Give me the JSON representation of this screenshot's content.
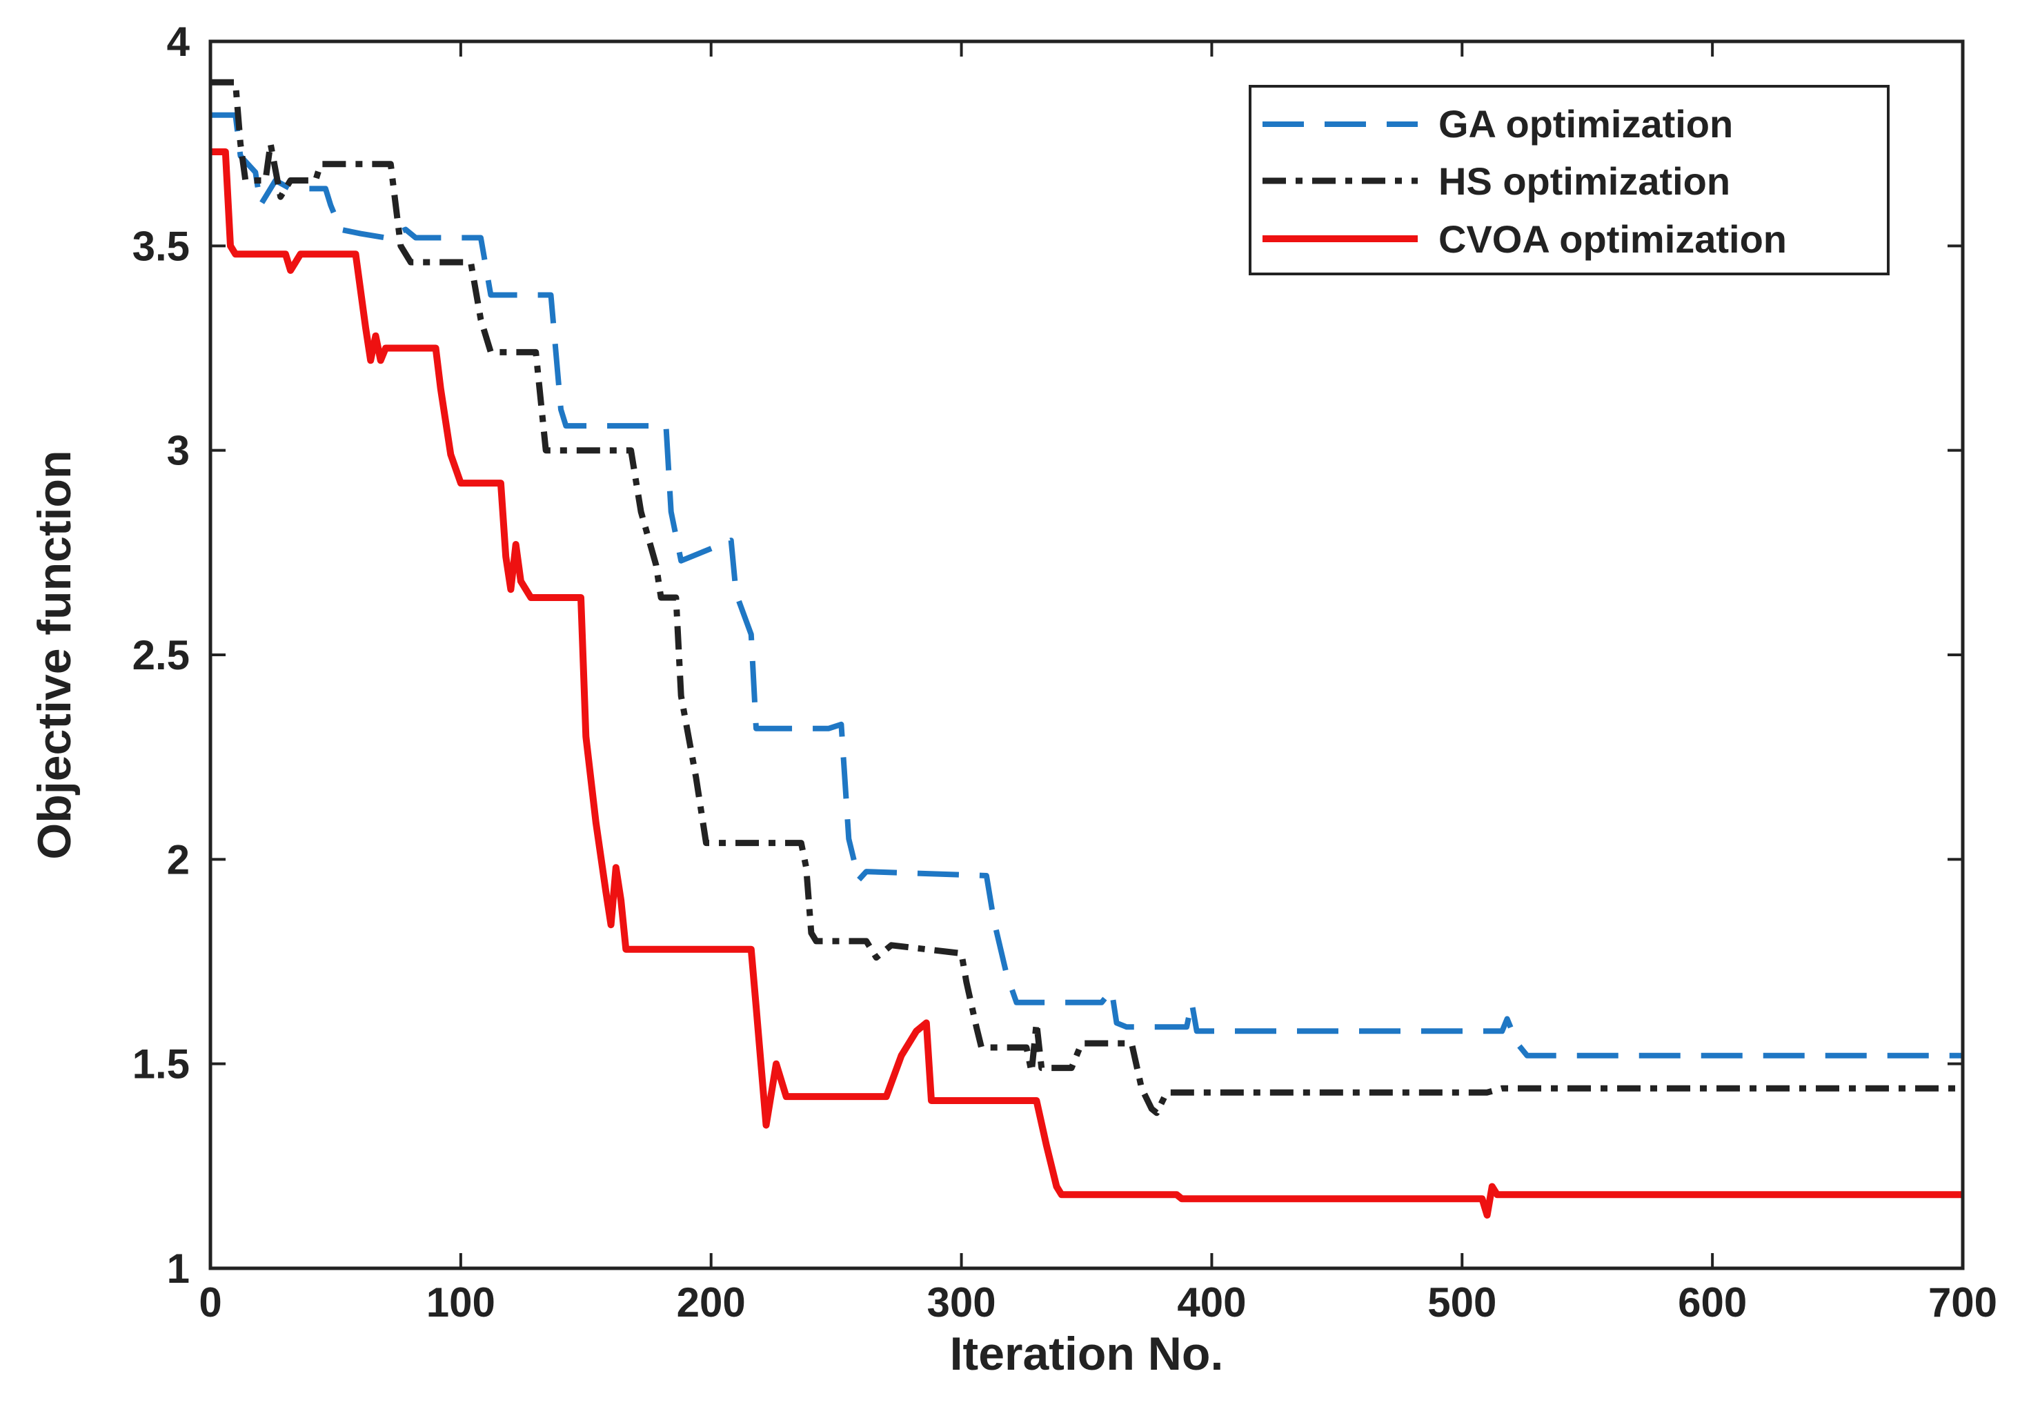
{
  "chart_data": {
    "type": "line",
    "title": "",
    "xlabel": "Iteration No.",
    "ylabel": "Objective function",
    "xlim": [
      0,
      700
    ],
    "ylim": [
      1,
      4
    ],
    "xticks": [
      0,
      100,
      200,
      300,
      400,
      500,
      600,
      700
    ],
    "yticks": [
      1,
      1.5,
      2,
      2.5,
      3,
      3.5,
      4
    ],
    "xtick_labels": [
      "0",
      "100",
      "200",
      "300",
      "400",
      "500",
      "600",
      "700"
    ],
    "ytick_labels": [
      "1",
      "1.5",
      "2",
      "2.5",
      "3",
      "3.5",
      "4"
    ],
    "grid": false,
    "legend_position": "top-right",
    "series": [
      {
        "name": "GA optimization",
        "color": "#1f77c4",
        "style": "dashed",
        "points": [
          [
            0,
            3.82
          ],
          [
            10,
            3.82
          ],
          [
            12,
            3.72
          ],
          [
            18,
            3.68
          ],
          [
            20,
            3.6
          ],
          [
            26,
            3.66
          ],
          [
            32,
            3.64
          ],
          [
            46,
            3.64
          ],
          [
            48,
            3.6
          ],
          [
            52,
            3.54
          ],
          [
            60,
            3.53
          ],
          [
            70,
            3.52
          ],
          [
            78,
            3.54
          ],
          [
            82,
            3.52
          ],
          [
            108,
            3.52
          ],
          [
            112,
            3.38
          ],
          [
            136,
            3.38
          ],
          [
            140,
            3.1
          ],
          [
            142,
            3.06
          ],
          [
            182,
            3.06
          ],
          [
            184,
            2.85
          ],
          [
            188,
            2.73
          ],
          [
            208,
            2.78
          ],
          [
            210,
            2.65
          ],
          [
            216,
            2.55
          ],
          [
            218,
            2.32
          ],
          [
            247,
            2.32
          ],
          [
            252,
            2.33
          ],
          [
            255,
            2.05
          ],
          [
            259,
            1.95
          ],
          [
            262,
            1.97
          ],
          [
            310,
            1.96
          ],
          [
            313,
            1.85
          ],
          [
            318,
            1.72
          ],
          [
            322,
            1.65
          ],
          [
            356,
            1.65
          ],
          [
            360,
            1.68
          ],
          [
            362,
            1.6
          ],
          [
            366,
            1.59
          ],
          [
            390,
            1.59
          ],
          [
            392,
            1.65
          ],
          [
            394,
            1.58
          ],
          [
            516,
            1.58
          ],
          [
            518,
            1.61
          ],
          [
            522,
            1.55
          ],
          [
            526,
            1.52
          ],
          [
            700,
            1.52
          ]
        ]
      },
      {
        "name": "HS optimization",
        "color": "#222222",
        "style": "dash-dot",
        "points": [
          [
            0,
            3.9
          ],
          [
            10,
            3.9
          ],
          [
            12,
            3.75
          ],
          [
            14,
            3.66
          ],
          [
            22,
            3.66
          ],
          [
            24,
            3.75
          ],
          [
            28,
            3.62
          ],
          [
            32,
            3.66
          ],
          [
            42,
            3.66
          ],
          [
            44,
            3.7
          ],
          [
            72,
            3.7
          ],
          [
            76,
            3.5
          ],
          [
            80,
            3.46
          ],
          [
            104,
            3.46
          ],
          [
            108,
            3.32
          ],
          [
            112,
            3.24
          ],
          [
            130,
            3.24
          ],
          [
            134,
            3.0
          ],
          [
            168,
            3.0
          ],
          [
            172,
            2.85
          ],
          [
            178,
            2.72
          ],
          [
            180,
            2.64
          ],
          [
            186,
            2.64
          ],
          [
            188,
            2.4
          ],
          [
            194,
            2.2
          ],
          [
            198,
            2.04
          ],
          [
            236,
            2.04
          ],
          [
            238,
            1.98
          ],
          [
            240,
            1.82
          ],
          [
            242,
            1.8
          ],
          [
            262,
            1.8
          ],
          [
            266,
            1.76
          ],
          [
            272,
            1.79
          ],
          [
            300,
            1.77
          ],
          [
            302,
            1.7
          ],
          [
            306,
            1.59
          ],
          [
            308,
            1.54
          ],
          [
            326,
            1.54
          ],
          [
            328,
            1.48
          ],
          [
            330,
            1.6
          ],
          [
            332,
            1.49
          ],
          [
            344,
            1.49
          ],
          [
            348,
            1.55
          ],
          [
            368,
            1.55
          ],
          [
            372,
            1.44
          ],
          [
            376,
            1.39
          ],
          [
            378,
            1.38
          ],
          [
            382,
            1.43
          ],
          [
            510,
            1.43
          ],
          [
            516,
            1.44
          ],
          [
            700,
            1.44
          ]
        ]
      },
      {
        "name": "CVOA optimization",
        "color": "#ee1111",
        "style": "solid",
        "points": [
          [
            0,
            3.73
          ],
          [
            6,
            3.73
          ],
          [
            8,
            3.5
          ],
          [
            10,
            3.48
          ],
          [
            30,
            3.48
          ],
          [
            32,
            3.44
          ],
          [
            34,
            3.46
          ],
          [
            36,
            3.48
          ],
          [
            58,
            3.48
          ],
          [
            62,
            3.3
          ],
          [
            64,
            3.22
          ],
          [
            66,
            3.28
          ],
          [
            68,
            3.22
          ],
          [
            70,
            3.25
          ],
          [
            90,
            3.25
          ],
          [
            92,
            3.15
          ],
          [
            96,
            2.99
          ],
          [
            100,
            2.92
          ],
          [
            116,
            2.92
          ],
          [
            118,
            2.74
          ],
          [
            120,
            2.66
          ],
          [
            122,
            2.77
          ],
          [
            124,
            2.68
          ],
          [
            128,
            2.64
          ],
          [
            148,
            2.64
          ],
          [
            150,
            2.3
          ],
          [
            154,
            2.09
          ],
          [
            158,
            1.92
          ],
          [
            160,
            1.84
          ],
          [
            162,
            1.98
          ],
          [
            164,
            1.9
          ],
          [
            166,
            1.78
          ],
          [
            216,
            1.78
          ],
          [
            218,
            1.64
          ],
          [
            222,
            1.35
          ],
          [
            226,
            1.5
          ],
          [
            230,
            1.42
          ],
          [
            270,
            1.42
          ],
          [
            276,
            1.52
          ],
          [
            282,
            1.58
          ],
          [
            286,
            1.6
          ],
          [
            288,
            1.41
          ],
          [
            330,
            1.41
          ],
          [
            334,
            1.3
          ],
          [
            338,
            1.2
          ],
          [
            340,
            1.18
          ],
          [
            386,
            1.18
          ],
          [
            388,
            1.17
          ],
          [
            508,
            1.17
          ],
          [
            510,
            1.13
          ],
          [
            512,
            1.2
          ],
          [
            514,
            1.18
          ],
          [
            700,
            1.18
          ]
        ]
      }
    ]
  }
}
